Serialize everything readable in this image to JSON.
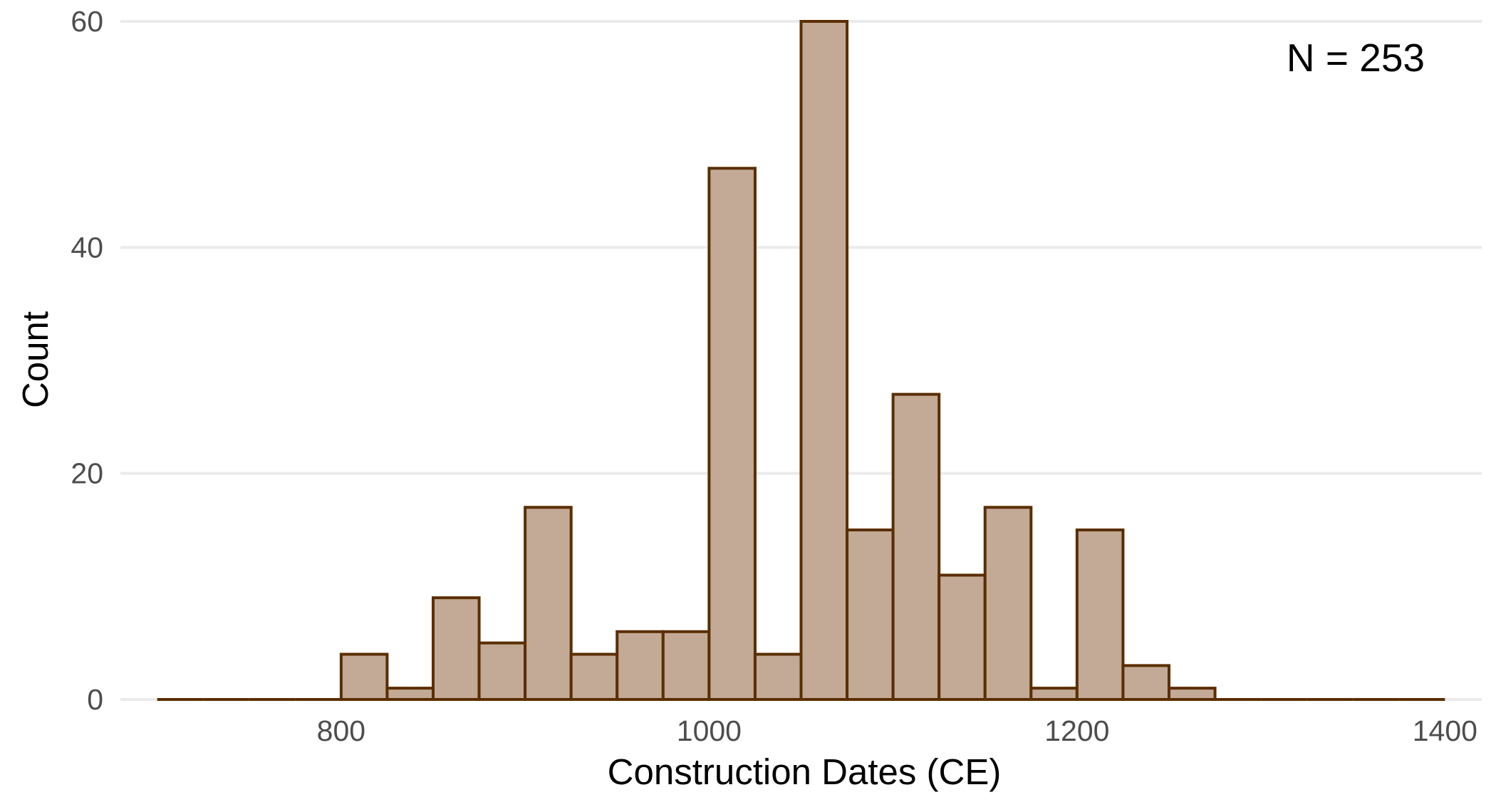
{
  "chart_data": {
    "type": "histogram",
    "title": "",
    "xlabel": "Construction Dates (CE)",
    "ylabel": "Count",
    "annotation": "N = 253",
    "annotation_position": "top-right",
    "grid": "horizontal major",
    "legend": "none",
    "xlim": [
      680,
      1420
    ],
    "ylim": [
      0,
      60
    ],
    "x_ticks": [
      800,
      1000,
      1200,
      1400
    ],
    "y_ticks": [
      0,
      20,
      40,
      60
    ],
    "bin_width": 25,
    "bins": [
      {
        "start": 700,
        "count": 0
      },
      {
        "start": 725,
        "count": 0
      },
      {
        "start": 750,
        "count": 0
      },
      {
        "start": 775,
        "count": 0
      },
      {
        "start": 800,
        "count": 4
      },
      {
        "start": 825,
        "count": 1
      },
      {
        "start": 850,
        "count": 9
      },
      {
        "start": 875,
        "count": 5
      },
      {
        "start": 900,
        "count": 17
      },
      {
        "start": 925,
        "count": 4
      },
      {
        "start": 950,
        "count": 6
      },
      {
        "start": 975,
        "count": 6
      },
      {
        "start": 1000,
        "count": 47
      },
      {
        "start": 1025,
        "count": 4
      },
      {
        "start": 1050,
        "count": 60
      },
      {
        "start": 1075,
        "count": 15
      },
      {
        "start": 1100,
        "count": 27
      },
      {
        "start": 1125,
        "count": 11
      },
      {
        "start": 1150,
        "count": 17
      },
      {
        "start": 1175,
        "count": 1
      },
      {
        "start": 1200,
        "count": 15
      },
      {
        "start": 1225,
        "count": 3
      },
      {
        "start": 1250,
        "count": 1
      },
      {
        "start": 1275,
        "count": 0
      },
      {
        "start": 1300,
        "count": 0
      },
      {
        "start": 1325,
        "count": 0
      },
      {
        "start": 1350,
        "count": 0
      },
      {
        "start": 1375,
        "count": 0
      }
    ],
    "colors": {
      "fill": "#c2aa96",
      "stroke": "#5a2e00",
      "grid": "#ebebeb",
      "tick_text": "#4d4d4d",
      "axis_title": "#000000"
    }
  }
}
